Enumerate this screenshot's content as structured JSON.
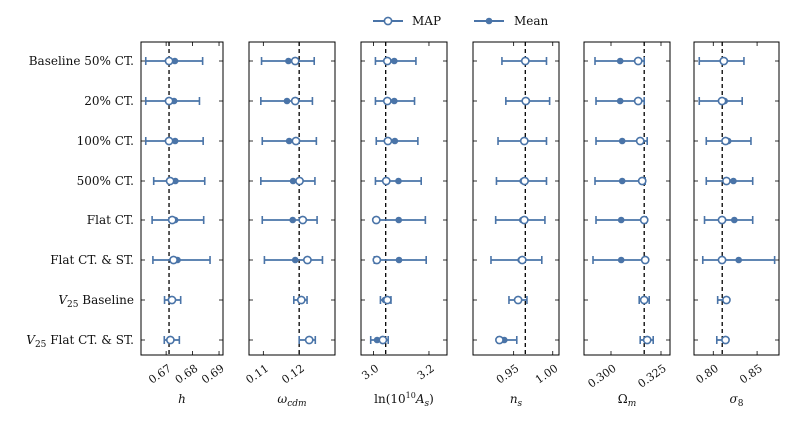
{
  "chart_data": {
    "type": "errorbar-forest",
    "colors": {
      "series": "#4a74a8",
      "reference": "#000000"
    },
    "legend": [
      {
        "name": "MAP",
        "marker": "open-circle"
      },
      {
        "name": "Mean",
        "marker": "filled-dot"
      }
    ],
    "rows": [
      "Baseline 50% CT.",
      "20% CT.",
      "100% CT.",
      "500% CT.",
      "Flat CT.",
      "Flat CT. & ST.",
      "V25 Baseline",
      "V25 Flat CT. & ST."
    ],
    "row_label_parts": [
      {
        "italic": "",
        "rest": "Baseline 50% CT."
      },
      {
        "italic": "",
        "rest": "20% CT."
      },
      {
        "italic": "",
        "rest": "100% CT."
      },
      {
        "italic": "",
        "rest": "500% CT."
      },
      {
        "italic": "",
        "rest": "Flat CT."
      },
      {
        "italic": "",
        "rest": "Flat CT. & ST."
      },
      {
        "italic": "V",
        "sub": "25",
        "rest": " Baseline"
      },
      {
        "italic": "V",
        "sub": "25",
        "rest": " Flat CT. & ST."
      }
    ],
    "panels": [
      {
        "param": "h",
        "xlabel": "h",
        "xlim": [
          0.6605,
          0.6915
        ],
        "truth": 0.6711,
        "ticks": [
          0.67,
          0.68,
          0.69
        ],
        "tick_labels": [
          "0.67",
          "0.68",
          "0.69"
        ],
        "map": [
          0.6711,
          0.6711,
          0.6711,
          0.6715,
          0.6723,
          0.6728,
          0.6722,
          0.6716
        ],
        "mean": [
          0.6733,
          0.673,
          0.6734,
          0.6735,
          0.6734,
          0.6743,
          0.6722,
          0.6718
        ],
        "lo": [
          0.6623,
          0.6623,
          0.6623,
          0.6653,
          0.6647,
          0.665,
          0.6694,
          0.6693
        ],
        "hi": [
          0.6838,
          0.6826,
          0.684,
          0.6846,
          0.6842,
          0.6866,
          0.6755,
          0.675
        ]
      },
      {
        "param": "omega_cdm",
        "xlabel": "ω_cdm",
        "xlim": [
          0.106,
          0.13
        ],
        "truth": 0.12,
        "ticks": [
          0.11,
          0.12
        ],
        "tick_labels": [
          "0.11",
          "0.12"
        ],
        "map": [
          0.1189,
          0.1189,
          0.1191,
          0.1201,
          0.121,
          0.1223,
          0.1206,
          0.1228
        ],
        "mean": [
          0.117,
          0.1166,
          0.1172,
          0.1183,
          0.1182,
          0.1189,
          0.1206,
          0.1228
        ],
        "lo": [
          0.1095,
          0.1093,
          0.1097,
          0.1093,
          0.1097,
          0.1103,
          0.1185,
          0.12
        ],
        "hi": [
          0.1242,
          0.1237,
          0.1248,
          0.1244,
          0.125,
          0.1265,
          0.1222,
          0.1245
        ]
      },
      {
        "param": "ln10As",
        "xlabel": "ln(10^10 A_s)",
        "xlim": [
          2.955,
          3.265
        ],
        "truth": 3.044,
        "ticks": [
          3.0,
          3.2
        ],
        "tick_labels": [
          "3.0",
          "3.2"
        ],
        "map": [
          3.05,
          3.05,
          3.052,
          3.046,
          3.01,
          3.012,
          3.05,
          3.034
        ],
        "mean": [
          3.075,
          3.075,
          3.077,
          3.09,
          3.091,
          3.092,
          3.041,
          3.013
        ],
        "lo": [
          3.007,
          3.007,
          3.01,
          3.007,
          3.007,
          3.003,
          3.025,
          2.99
        ],
        "hi": [
          3.153,
          3.148,
          3.16,
          3.172,
          3.187,
          3.19,
          3.063,
          3.053
        ]
      },
      {
        "param": "n_s",
        "xlabel": "n_s",
        "xlim": [
          0.898,
          1.008
        ],
        "truth": 0.9649,
        "ticks": [
          0.95,
          1.0
        ],
        "tick_labels": [
          "0.95",
          "1.00"
        ],
        "map": [
          0.9649,
          0.9655,
          0.9636,
          0.964,
          0.9636,
          0.961,
          0.9557,
          0.9318
        ],
        "mean": [
          0.9649,
          0.967,
          0.9636,
          0.9615,
          0.961,
          0.9589,
          0.9557,
          0.938
        ],
        "lo": [
          0.935,
          0.94,
          0.93,
          0.928,
          0.927,
          0.921,
          0.944,
          0.93
        ],
        "hi": [
          0.992,
          0.996,
          0.992,
          0.992,
          0.99,
          0.986,
          0.967,
          0.954
        ]
      },
      {
        "param": "Omega_m",
        "xlabel": "Ω_m",
        "xlim": [
          0.2865,
          0.3295
        ],
        "truth": 0.3166,
        "ticks": [
          0.3,
          0.325
        ],
        "tick_labels": [
          "0.300",
          "0.325"
        ],
        "map": [
          0.3136,
          0.3136,
          0.3146,
          0.3156,
          0.3166,
          0.3171,
          0.3166,
          0.3181
        ],
        "mean": [
          0.3046,
          0.3046,
          0.3056,
          0.3056,
          0.3051,
          0.3051,
          0.3166,
          0.3181
        ],
        "lo": [
          0.292,
          0.2925,
          0.2925,
          0.292,
          0.2925,
          0.291,
          0.3141,
          0.3146
        ],
        "hi": [
          0.3166,
          0.3166,
          0.3181,
          0.3171,
          0.3176,
          0.3176,
          0.3191,
          0.3211
        ]
      },
      {
        "param": "sigma_8",
        "xlabel": "σ_8",
        "xlim": [
          0.778,
          0.875
        ],
        "truth": 0.8102,
        "ticks": [
          0.8,
          0.85
        ],
        "tick_labels": [
          "0.80",
          "0.85"
        ],
        "map": [
          0.812,
          0.81,
          0.814,
          0.815,
          0.81,
          0.81,
          0.815,
          0.814
        ],
        "mean": [
          0.813,
          0.813,
          0.817,
          0.823,
          0.824,
          0.829,
          0.815,
          0.814
        ],
        "lo": [
          0.784,
          0.784,
          0.792,
          0.792,
          0.79,
          0.788,
          0.805,
          0.804
        ],
        "hi": [
          0.835,
          0.833,
          0.843,
          0.845,
          0.845,
          0.87,
          0.815,
          0.814
        ]
      }
    ]
  }
}
